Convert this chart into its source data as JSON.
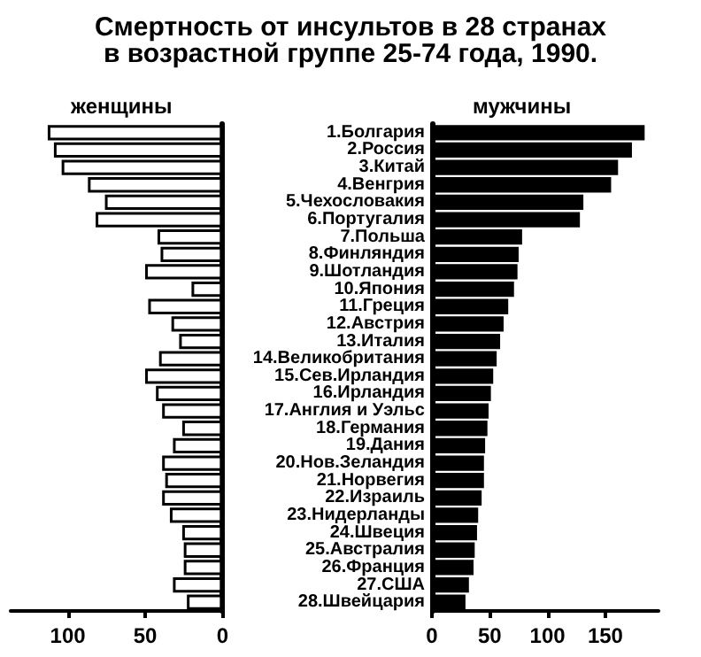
{
  "chart_data": [
    {
      "type": "bar",
      "orientation": "horizontal",
      "title": "Смертность от инсультов в 28 странах\nв возрастной группе 25-74 года, 1990.",
      "tick_labels": "x",
      "categories": [
        null,
        null,
        null,
        null,
        null,
        null,
        null,
        null,
        null,
        null,
        null,
        null,
        null,
        null,
        null,
        null,
        null,
        null,
        null,
        null,
        null,
        null,
        null,
        null,
        null,
        null,
        null,
        null
      ],
      "series": [
        {
          "name": "женщины",
          "color": "#ffffff",
          "values": [
            113,
            109,
            104,
            87,
            76,
            82,
            42,
            40,
            50,
            20,
            48,
            33,
            28,
            41,
            50,
            43,
            39,
            26,
            32,
            39,
            37,
            39,
            34,
            26,
            25,
            25,
            32,
            23
          ]
        }
      ],
      "xlim": [
        137,
        0
      ],
      "xticks": [
        0,
        50,
        100
      ]
    },
    {
      "type": "bar",
      "orientation": "horizontal",
      "categories": [
        "1.Болгария",
        "2.Россия",
        "3.Китай",
        "4.Венгрия",
        "5.Чехословакия",
        "6.Португалия",
        "7.Польша",
        "8.Финляндия",
        "9.Шотландия",
        "10.Япония",
        "11.Греция",
        "12.Австрия",
        "13.Италия",
        "14.Великобритания",
        "15.Сев.Ирландия",
        "16.Ирландия",
        "17.Англия и Уэльс",
        "18.Германия",
        "19.Дания",
        "20.Нов.Зеландия",
        "21.Норвегия",
        "22.Израиль",
        "23.Нидерланды",
        "24.Швеция",
        "25.Австралия",
        "26.Франция",
        "27.США",
        "28.Швейцария"
      ],
      "series": [
        {
          "name": "мужчины",
          "color": "#000000",
          "values": [
            184,
            173,
            161,
            155,
            131,
            128,
            78,
            75,
            74,
            71,
            66,
            62,
            59,
            56,
            53,
            51,
            49,
            48,
            46,
            45,
            45,
            43,
            40,
            39,
            37,
            36,
            32,
            29
          ]
        }
      ],
      "xlim": [
        0,
        196
      ],
      "xticks": [
        0,
        50,
        100,
        150
      ]
    }
  ]
}
